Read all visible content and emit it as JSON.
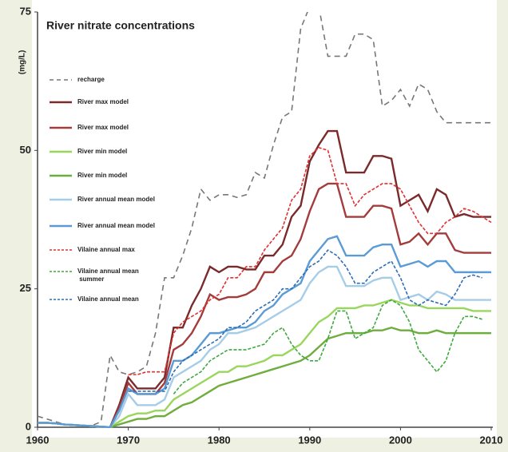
{
  "chart_data": {
    "type": "line",
    "title": "River nitrate concentrations",
    "ylabel": "(mg/L)",
    "x": [
      1960,
      1961,
      1962,
      1963,
      1964,
      1965,
      1966,
      1967,
      1968,
      1969,
      1970,
      1971,
      1972,
      1973,
      1974,
      1975,
      1976,
      1977,
      1978,
      1979,
      1980,
      1981,
      1982,
      1983,
      1984,
      1985,
      1986,
      1987,
      1988,
      1989,
      1990,
      1991,
      1992,
      1993,
      1994,
      1995,
      1996,
      1997,
      1998,
      1999,
      2000,
      2001,
      2002,
      2003,
      2004,
      2005,
      2006,
      2007,
      2008,
      2009,
      2010
    ],
    "xlim": [
      1960,
      2010
    ],
    "xticks": [
      1960,
      1970,
      1980,
      1990,
      2000,
      2010
    ],
    "ylim": [
      0,
      75
    ],
    "yticks": [
      0,
      25,
      50,
      75
    ],
    "series": [
      {
        "name": "recharge",
        "color": "#777777",
        "dash": true,
        "values": [
          2,
          1.5,
          1,
          0.5,
          0.5,
          0.3,
          0.3,
          1,
          13,
          10,
          9.5,
          10,
          11,
          17,
          27,
          27,
          31,
          36,
          43,
          41,
          42,
          42,
          41.5,
          42,
          46,
          45,
          51,
          56,
          57,
          72,
          76,
          76,
          67,
          67,
          67,
          71,
          71,
          70,
          58,
          59,
          61,
          58,
          62,
          61,
          57,
          55,
          55,
          55,
          55,
          55,
          55
        ]
      },
      {
        "name": "River max model",
        "color": "#7a2a2a",
        "dash": false,
        "values": [
          0.8,
          0.8,
          0.7,
          0.5,
          0.4,
          0.3,
          0.2,
          0.1,
          0,
          4,
          9,
          7,
          7,
          7,
          9,
          18,
          18,
          22,
          25,
          29,
          28,
          29,
          29,
          28.5,
          28.5,
          31,
          31,
          33,
          38,
          40,
          48,
          51,
          53.5,
          53.5,
          46,
          46,
          46,
          49,
          49,
          48.5,
          40,
          41,
          42,
          39,
          43,
          42,
          38,
          38.5,
          38,
          38,
          38
        ]
      },
      {
        "name": "River max model",
        "color": "#a33c3c",
        "dash": false,
        "values": [
          0.8,
          0.8,
          0.7,
          0.5,
          0.4,
          0.3,
          0.2,
          0.1,
          0,
          3.5,
          8,
          6,
          6,
          6,
          8,
          14,
          15,
          17,
          20,
          24,
          23,
          23.5,
          23.5,
          24,
          25,
          28,
          28,
          30,
          31,
          34,
          39,
          43,
          44,
          44,
          38,
          38,
          38,
          40,
          40,
          39.5,
          33,
          33.5,
          35,
          33,
          35,
          35,
          32,
          31.5,
          31.5,
          31.5,
          31.5
        ]
      },
      {
        "name": "River min model",
        "color": "#99d65c",
        "dash": false,
        "values": [
          0.8,
          0.8,
          0.7,
          0.5,
          0.4,
          0.3,
          0.2,
          0.1,
          0,
          1,
          2,
          2.5,
          2.5,
          3,
          3,
          5,
          6,
          7,
          8,
          9,
          10,
          10,
          11,
          11,
          11.5,
          12,
          13,
          13,
          14,
          15,
          17,
          19,
          20,
          21.5,
          21.5,
          21.5,
          22,
          22,
          22.5,
          23,
          22.5,
          22,
          22,
          21.5,
          21.5,
          21.5,
          21.5,
          21.5,
          21,
          21,
          21
        ]
      },
      {
        "name": "River min model",
        "color": "#6fae3e",
        "dash": false,
        "values": [
          0.8,
          0.8,
          0.7,
          0.5,
          0.4,
          0.3,
          0.2,
          0.1,
          0,
          0.5,
          1,
          1.5,
          1.5,
          2,
          2,
          3,
          4,
          4.5,
          5.5,
          6.5,
          7.5,
          8,
          8.5,
          9,
          9.5,
          10,
          10.5,
          11,
          11.5,
          12,
          13,
          14.5,
          16,
          16.5,
          17,
          17,
          17,
          17.5,
          17.5,
          18,
          17.5,
          17.5,
          17,
          17,
          17.5,
          17,
          17,
          17,
          17,
          17,
          17
        ]
      },
      {
        "name": "River annual mean model",
        "color": "#a6cde8",
        "dash": false,
        "values": [
          0.8,
          0.8,
          0.7,
          0.5,
          0.4,
          0.3,
          0.2,
          0.1,
          0,
          2,
          6,
          4,
          4,
          4,
          5,
          9,
          10,
          11,
          12,
          14,
          15,
          17,
          17,
          17.5,
          18,
          19,
          20,
          21,
          22,
          23,
          26,
          28,
          29,
          29,
          25.5,
          25.5,
          25.5,
          26.5,
          27,
          27,
          23,
          23.5,
          24,
          23,
          24.5,
          24,
          23,
          23,
          23,
          23,
          23
        ]
      },
      {
        "name": "River annual mean model",
        "color": "#5b9bd5",
        "dash": false,
        "values": [
          0.8,
          0.8,
          0.7,
          0.5,
          0.4,
          0.3,
          0.2,
          0.1,
          0,
          3,
          7,
          6,
          6,
          6,
          7,
          12,
          12,
          13,
          15,
          17,
          17,
          17.5,
          18,
          18,
          19,
          21,
          22,
          24,
          25,
          26,
          30,
          32,
          34,
          34.5,
          31,
          31,
          31,
          32.5,
          33,
          33,
          29,
          29.5,
          30,
          29,
          30,
          30,
          28,
          28,
          28,
          28,
          28
        ]
      },
      {
        "name": "Vilaine annual max",
        "color": "#e03030",
        "dash": true,
        "values": [
          null,
          null,
          null,
          null,
          null,
          null,
          null,
          null,
          null,
          null,
          9.5,
          9.5,
          10,
          10,
          10,
          17,
          19,
          20,
          21,
          23,
          24,
          27,
          27,
          29,
          29,
          32,
          34,
          36,
          41,
          43,
          49,
          50.5,
          50,
          44,
          44,
          40,
          42,
          43,
          44,
          44,
          43,
          40,
          37,
          35,
          35,
          37,
          38,
          39.5,
          39,
          38,
          37
        ]
      },
      {
        "name": "Vilaine annual mean summer",
        "color": "#3fa83f",
        "dash": true,
        "values": [
          null,
          null,
          null,
          null,
          null,
          null,
          null,
          null,
          null,
          null,
          null,
          null,
          null,
          null,
          null,
          6,
          8,
          9,
          10,
          12,
          13,
          14,
          14,
          14,
          14.5,
          15,
          17,
          18,
          15,
          13,
          12,
          12,
          16,
          21,
          21,
          16,
          17,
          18,
          22,
          23,
          22,
          19,
          14,
          12,
          10,
          12,
          17,
          20,
          20,
          19.5,
          null
        ]
      },
      {
        "name": "Vilaine annual mean",
        "color": "#2e6db5",
        "dash": true,
        "values": [
          null,
          null,
          null,
          null,
          null,
          null,
          null,
          null,
          null,
          null,
          6.5,
          6.5,
          6.5,
          6.5,
          6.5,
          10,
          12,
          13,
          14,
          15,
          16,
          18,
          18,
          19,
          21,
          22,
          23,
          25,
          25,
          27,
          29,
          30,
          32,
          31,
          29,
          26,
          26,
          28,
          29,
          30,
          27,
          23,
          22,
          23,
          22.5,
          22,
          24,
          27,
          27.5,
          27,
          null
        ]
      }
    ]
  }
}
